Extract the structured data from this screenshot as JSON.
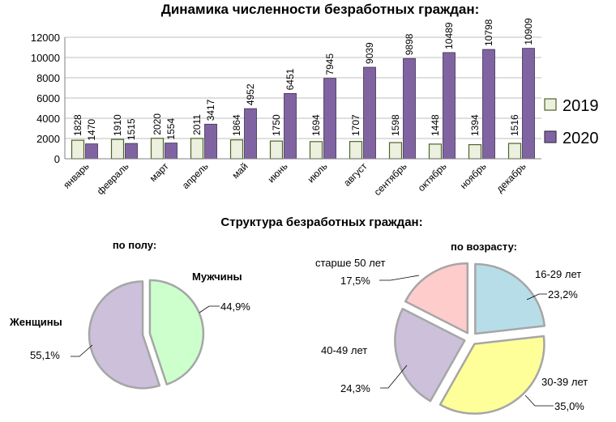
{
  "chart_data": [
    {
      "type": "bar",
      "title": "Динамика численности безработных граждан:",
      "categories": [
        "январь",
        "февраль",
        "март",
        "апрель",
        "май",
        "июнь",
        "июль",
        "август",
        "сентябрь",
        "октябрь",
        "ноябрь",
        "декабрь"
      ],
      "series": [
        {
          "name": "2019",
          "values": [
            1828,
            1910,
            2020,
            2011,
            1864,
            1750,
            1694,
            1707,
            1598,
            1448,
            1394,
            1516
          ],
          "color": "#ebf1de"
        },
        {
          "name": "2020",
          "values": [
            1470,
            1515,
            1554,
            3417,
            4952,
            6451,
            7945,
            9039,
            9898,
            10489,
            10798,
            10909
          ],
          "color": "#8064a2"
        }
      ],
      "ylim": [
        0,
        12000
      ],
      "yticks": [
        "0",
        "2000",
        "4000",
        "6000",
        "8000",
        "10000",
        "12000"
      ],
      "grid": true,
      "legend": "right"
    },
    {
      "type": "pie",
      "title": "Структура безработных граждан:",
      "subtitle": "по полу:",
      "slices": [
        {
          "label": "Мужчины",
          "value": 44.9,
          "value_label": "44,9%",
          "color": "#ccffcc"
        },
        {
          "label": "Женщины",
          "value": 55.1,
          "value_label": "55,1%",
          "color": "#ccc0da"
        }
      ]
    },
    {
      "type": "pie",
      "subtitle": "по возрасту:",
      "slices": [
        {
          "label": "16-29 лет",
          "value": 23.2,
          "value_label": "23,2%",
          "color": "#b7dee8"
        },
        {
          "label": "30-39 лет",
          "value": 35.0,
          "value_label": "35,0%",
          "color": "#ffff99"
        },
        {
          "label": "40-49 лет",
          "value": 24.3,
          "value_label": "24,3%",
          "color": "#ccc0da"
        },
        {
          "label": "старше 50 лет",
          "value": 17.5,
          "value_label": "17,5%",
          "color": "#ffcccc"
        }
      ]
    }
  ]
}
